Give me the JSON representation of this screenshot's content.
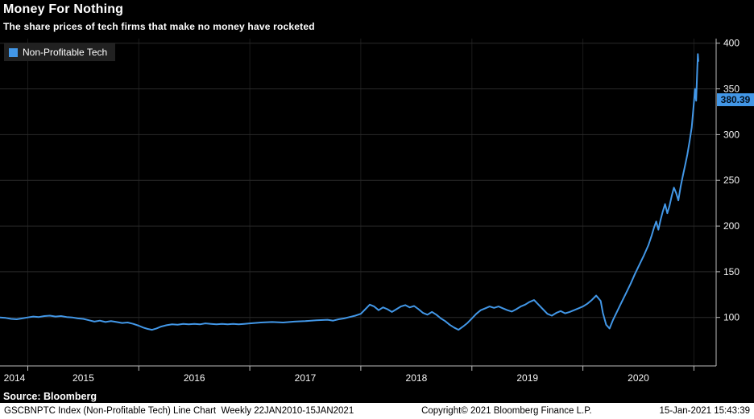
{
  "header": {
    "title": "Money For Nothing",
    "subtitle": "The share prices of tech firms that make no money have rocketed"
  },
  "legend": {
    "label": "Non-Profitable Tech",
    "swatch_color": "#4297e7"
  },
  "chart_data": {
    "type": "line",
    "title": "Money For Nothing",
    "subtitle": "The share prices of tech firms that make no money have rocketed",
    "xlabel": "",
    "ylabel": "",
    "grid": true,
    "legend_position": "top-left",
    "x_range": [
      2014.75,
      2021.2
    ],
    "y_range": [
      47,
      405
    ],
    "y_ticks": [
      100,
      150,
      200,
      250,
      300,
      350,
      400
    ],
    "x_tick_years": [
      2014,
      2015,
      2016,
      2017,
      2018,
      2019,
      2020
    ],
    "last_value": 380.39,
    "last_value_label": "380.39",
    "series": [
      {
        "name": "Non-Profitable Tech",
        "color": "#4297e7",
        "x": [
          2014.75,
          2014.8,
          2014.85,
          2014.9,
          2014.95,
          2015.0,
          2015.05,
          2015.1,
          2015.15,
          2015.2,
          2015.25,
          2015.3,
          2015.35,
          2015.4,
          2015.45,
          2015.5,
          2015.55,
          2015.6,
          2015.65,
          2015.7,
          2015.75,
          2015.8,
          2015.85,
          2015.9,
          2015.95,
          2016.0,
          2016.04,
          2016.08,
          2016.12,
          2016.16,
          2016.2,
          2016.25,
          2016.3,
          2016.35,
          2016.4,
          2016.45,
          2016.5,
          2016.55,
          2016.6,
          2016.65,
          2016.7,
          2016.75,
          2016.8,
          2016.85,
          2016.9,
          2016.95,
          2017.0,
          2017.1,
          2017.2,
          2017.3,
          2017.4,
          2017.5,
          2017.6,
          2017.7,
          2017.75,
          2017.8,
          2017.85,
          2017.9,
          2017.95,
          2018.0,
          2018.04,
          2018.08,
          2018.12,
          2018.16,
          2018.2,
          2018.24,
          2018.28,
          2018.32,
          2018.36,
          2018.4,
          2018.44,
          2018.48,
          2018.52,
          2018.56,
          2018.6,
          2018.64,
          2018.68,
          2018.72,
          2018.76,
          2018.8,
          2018.84,
          2018.88,
          2018.92,
          2018.96,
          2019.0,
          2019.04,
          2019.08,
          2019.12,
          2019.16,
          2019.2,
          2019.24,
          2019.28,
          2019.32,
          2019.36,
          2019.4,
          2019.44,
          2019.48,
          2019.52,
          2019.56,
          2019.6,
          2019.64,
          2019.68,
          2019.72,
          2019.76,
          2019.8,
          2019.84,
          2019.88,
          2019.92,
          2019.96,
          2020.0,
          2020.04,
          2020.08,
          2020.12,
          2020.16,
          2020.18,
          2020.21,
          2020.24,
          2020.27,
          2020.31,
          2020.35,
          2020.39,
          2020.43,
          2020.47,
          2020.51,
          2020.55,
          2020.59,
          2020.62,
          2020.64,
          2020.66,
          2020.68,
          2020.7,
          2020.72,
          2020.74,
          2020.76,
          2020.78,
          2020.8,
          2020.82,
          2020.84,
          2020.86,
          2020.88,
          2020.9,
          2020.92,
          2020.94,
          2020.96,
          2020.98,
          2021.0,
          2021.01,
          2021.02,
          2021.03,
          2021.035,
          2021.04
        ],
        "y": [
          100,
          99.5,
          98.5,
          98,
          99,
          100,
          101,
          100.5,
          101.5,
          102,
          101,
          101.5,
          100.5,
          100,
          99,
          98.5,
          97,
          95.5,
          96.5,
          95,
          96,
          95,
          94,
          94.5,
          93,
          91,
          89,
          87.5,
          86.5,
          88,
          90,
          91.5,
          92.5,
          92,
          93,
          92.5,
          93,
          92.5,
          93.5,
          93,
          92.5,
          93,
          92.5,
          93,
          92.5,
          93,
          93.5,
          94.5,
          95,
          94.5,
          95.5,
          96,
          97,
          97.5,
          96.5,
          98,
          99,
          100.5,
          102,
          104,
          109,
          114,
          112,
          108,
          111,
          109,
          106,
          109,
          112,
          113.5,
          111,
          112.5,
          109,
          105,
          103,
          106,
          103,
          99,
          96,
          92,
          89,
          86.5,
          90,
          94,
          99,
          104,
          108,
          110,
          112,
          110.5,
          112,
          110,
          108,
          106.5,
          109,
          112,
          114,
          117,
          119,
          114,
          109,
          104,
          102,
          105,
          107,
          104.5,
          106,
          108,
          110,
          112,
          115,
          119,
          124,
          118,
          105,
          92,
          88,
          97,
          107,
          117,
          127,
          137,
          148,
          158,
          168,
          179,
          190,
          198,
          205,
          196,
          207,
          216,
          224,
          214,
          222,
          233,
          242,
          236,
          228,
          243,
          255,
          266,
          278,
          292,
          308,
          335,
          350,
          337,
          372,
          388,
          380.39
        ]
      }
    ]
  },
  "footer": {
    "source": "Source: Bloomberg",
    "left": "GSCBNPTC Index (Non-Profitable Tech) Line Chart  Weekly 22JAN2010-15JAN2021",
    "center": "Copyright© 2021 Bloomberg Finance L.P.",
    "right": "15-Jan-2021 15:43:39"
  },
  "colors": {
    "background": "#000000",
    "line": "#4297e7",
    "grid_h": "#2a2a2a",
    "grid_v": "#1b1b1b",
    "axis": "#bdbdbd",
    "tick_text": "#f5f5f5",
    "legend_bg": "#212121",
    "badge_text": "#03101f",
    "footer_bg": "#ffffff",
    "footer_text": "#000000"
  }
}
